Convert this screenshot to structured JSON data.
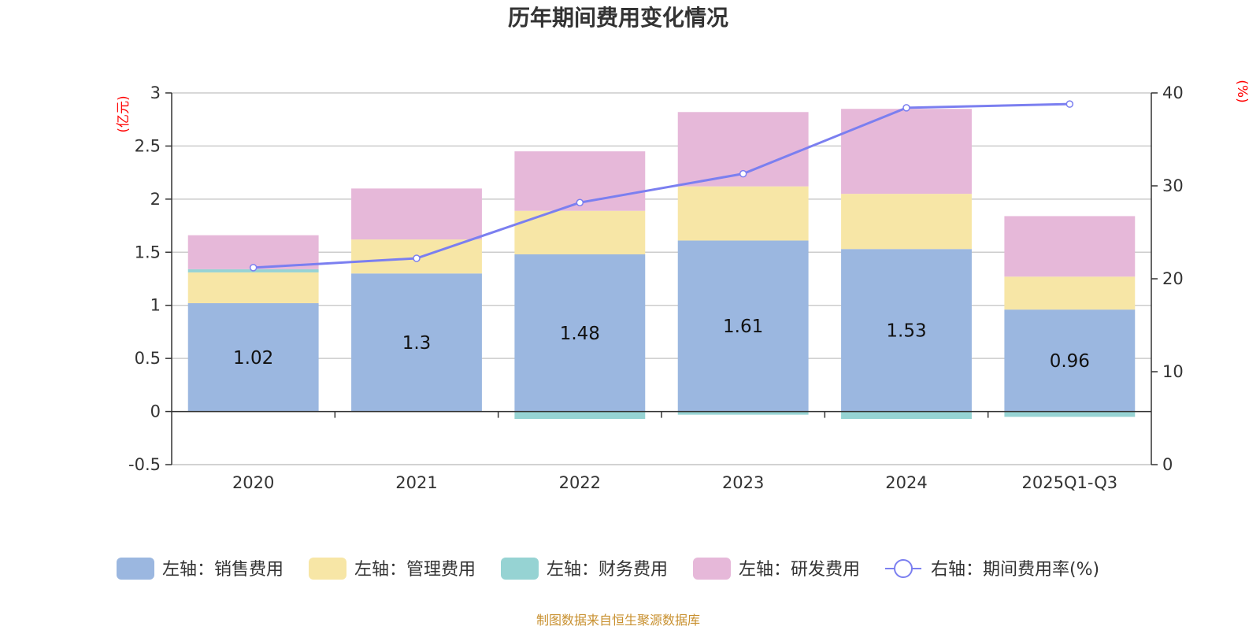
{
  "chart_data": {
    "type": "bar",
    "title": "历年期间费用变化情况",
    "categories": [
      "2020",
      "2021",
      "2022",
      "2023",
      "2024",
      "2025Q1-Q3"
    ],
    "left_axis": {
      "unit": "(亿元)",
      "ylim": [
        -0.5,
        3
      ],
      "ticks": [
        -0.5,
        0,
        0.5,
        1,
        1.5,
        2,
        2.5,
        3
      ]
    },
    "right_axis": {
      "unit": "(%)",
      "ylim": [
        0,
        40
      ],
      "ticks": [
        0,
        10,
        20,
        30,
        40
      ]
    },
    "series": [
      {
        "name": "左轴：销售费用",
        "type": "bar",
        "axis": "left",
        "color": "#9bb7e0",
        "values": [
          1.02,
          1.3,
          1.48,
          1.61,
          1.53,
          0.96
        ],
        "labels": [
          "1.02",
          "1.3",
          "1.48",
          "1.61",
          "1.53",
          "0.96"
        ]
      },
      {
        "name": "左轴：管理费用",
        "type": "bar",
        "axis": "left",
        "color": "#f7e6a6",
        "values": [
          0.29,
          0.32,
          0.41,
          0.51,
          0.52,
          0.31
        ]
      },
      {
        "name": "左轴：财务费用",
        "type": "bar",
        "axis": "left",
        "color": "#96d3d3",
        "values": [
          0.03,
          0.0,
          -0.07,
          -0.03,
          -0.07,
          -0.05
        ]
      },
      {
        "name": "左轴：研发费用",
        "type": "bar",
        "axis": "left",
        "color": "#e6b8d9",
        "values": [
          0.32,
          0.48,
          0.56,
          0.7,
          0.8,
          0.57
        ]
      },
      {
        "name": "右轴：期间费用率(%)",
        "type": "line",
        "axis": "right",
        "color": "#7b7ff0",
        "values": [
          21.2,
          22.2,
          28.2,
          31.3,
          38.4,
          38.8
        ]
      }
    ]
  },
  "source": "制图数据来自恒生聚源数据库"
}
